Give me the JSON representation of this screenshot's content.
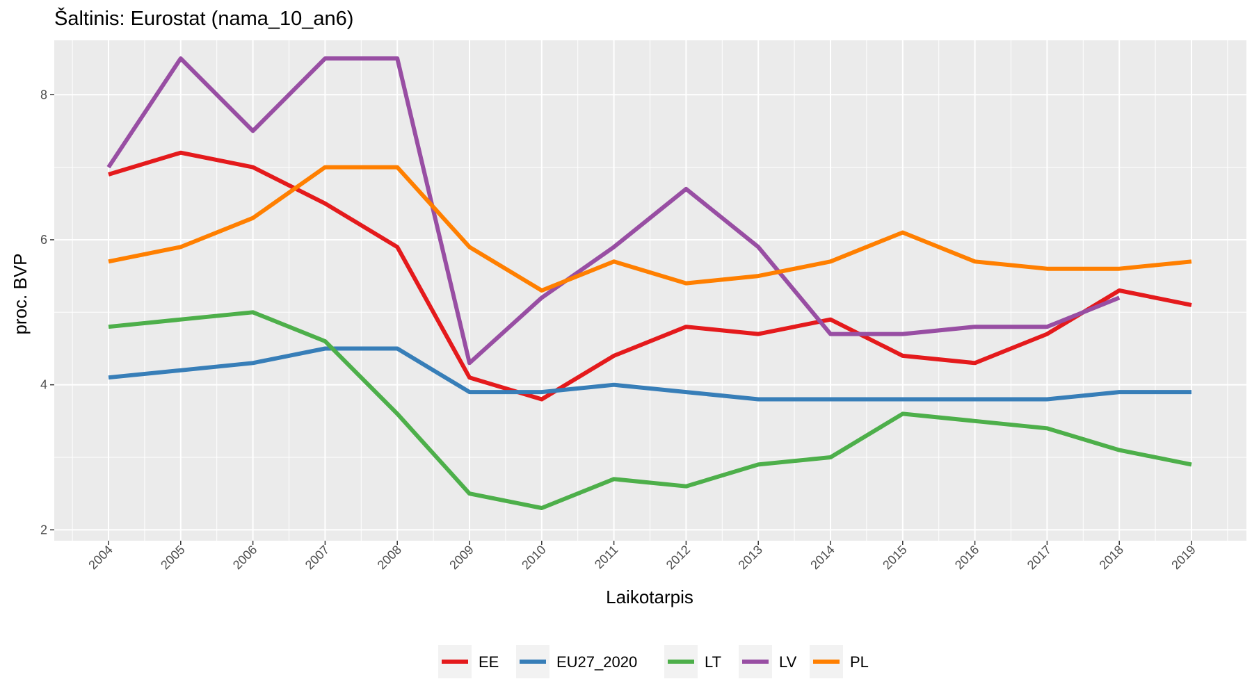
{
  "chart_data": {
    "type": "line",
    "title": "Šaltinis: Eurostat (nama_10_an6)",
    "xlabel": "Laikotarpis",
    "ylabel": "proc. BVP",
    "x": [
      "2004",
      "2005",
      "2006",
      "2007",
      "2008",
      "2009",
      "2010",
      "2011",
      "2012",
      "2013",
      "2014",
      "2015",
      "2016",
      "2017",
      "2018",
      "2019"
    ],
    "yticks": [
      "2",
      "4",
      "6",
      "8"
    ],
    "ylim": [
      2,
      8.5
    ],
    "grid": true,
    "legend_position": "bottom",
    "series": [
      {
        "name": "EE",
        "color": "#e41a1c",
        "values": [
          6.9,
          7.2,
          7.0,
          6.5,
          5.9,
          4.1,
          3.8,
          4.4,
          4.8,
          4.7,
          4.9,
          4.4,
          4.3,
          4.7,
          5.3,
          5.1
        ]
      },
      {
        "name": "EU27_2020",
        "color": "#377eb8",
        "values": [
          4.1,
          4.2,
          4.3,
          4.5,
          4.5,
          3.9,
          3.9,
          4.0,
          3.9,
          3.8,
          3.8,
          3.8,
          3.8,
          3.8,
          3.9,
          3.9
        ]
      },
      {
        "name": "LT",
        "color": "#4daf4a",
        "values": [
          4.8,
          4.9,
          5.0,
          4.6,
          3.6,
          2.5,
          2.3,
          2.7,
          2.6,
          2.9,
          3.0,
          3.6,
          3.5,
          3.4,
          3.1,
          2.9
        ]
      },
      {
        "name": "LV",
        "color": "#984ea3",
        "values": [
          7.0,
          8.5,
          7.5,
          8.5,
          8.5,
          4.3,
          5.2,
          5.9,
          6.7,
          5.9,
          4.7,
          4.7,
          4.8,
          4.8,
          5.2,
          null
        ]
      },
      {
        "name": "PL",
        "color": "#ff7f00",
        "values": [
          5.7,
          5.9,
          6.3,
          7.0,
          7.0,
          5.9,
          5.3,
          5.7,
          5.4,
          5.5,
          5.7,
          6.1,
          5.7,
          5.6,
          5.6,
          5.7
        ]
      }
    ]
  }
}
